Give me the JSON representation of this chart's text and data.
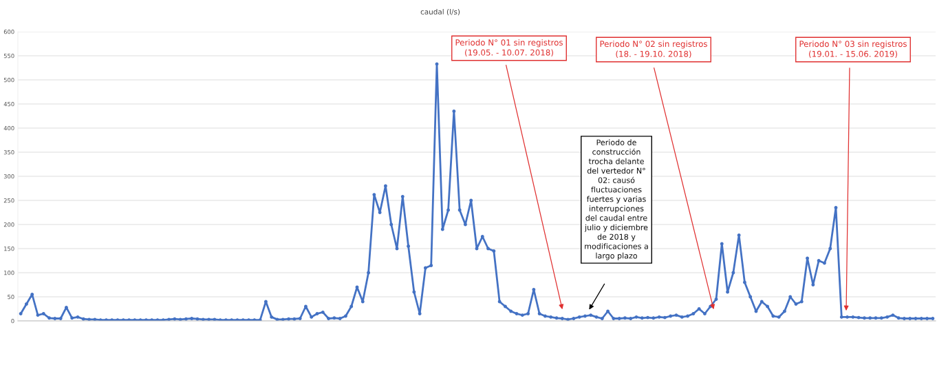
{
  "chart_data": {
    "type": "line",
    "title": "caudal (l/s)",
    "tick_labels": "y",
    "grid": "y",
    "marker": "circle",
    "line_style": "solid",
    "ylim": [
      0,
      600
    ],
    "yticks": [
      0,
      50,
      100,
      150,
      200,
      250,
      300,
      350,
      400,
      450,
      500,
      550,
      600
    ],
    "categories": [
      null,
      null,
      null,
      null,
      null,
      null,
      null,
      null,
      null,
      null,
      null,
      null,
      null,
      null,
      null,
      null,
      null,
      null,
      null,
      null,
      null,
      null,
      null,
      null,
      null,
      null,
      null,
      null,
      null,
      null,
      null,
      null,
      null,
      null,
      null,
      null,
      null,
      null,
      null,
      null,
      null,
      null,
      null,
      null,
      null,
      null,
      null,
      null,
      null,
      null,
      null,
      null,
      null,
      null,
      null,
      null,
      null,
      null,
      null,
      null,
      null,
      null,
      null,
      null,
      null,
      null,
      null,
      null,
      null,
      null,
      null,
      null,
      null,
      null,
      null,
      null,
      null,
      null,
      null,
      null,
      null,
      null,
      null,
      null,
      null,
      null,
      null,
      null,
      null,
      null,
      null,
      null,
      null,
      null,
      null,
      null,
      null,
      null,
      null,
      null,
      null,
      null,
      null,
      null,
      null,
      null,
      null,
      null,
      null,
      null,
      null,
      null,
      null,
      null,
      null,
      null,
      null,
      null,
      null,
      null,
      null,
      null,
      null,
      null,
      null,
      null,
      null,
      null,
      null,
      null,
      null,
      null,
      null,
      null,
      null,
      null,
      null,
      null,
      null,
      null,
      null,
      null,
      null,
      null,
      null,
      null,
      null,
      null,
      null,
      null,
      null,
      null,
      null,
      null,
      null,
      null,
      null,
      null,
      null,
      null,
      null
    ],
    "series": [
      {
        "color": "#4472c4",
        "values": [
          15,
          35,
          55,
          12,
          15,
          6,
          5,
          5,
          28,
          6,
          8,
          4,
          3,
          3,
          2,
          2,
          2,
          2,
          2,
          2,
          2,
          2,
          2,
          2,
          2,
          2,
          3,
          4,
          3,
          4,
          5,
          4,
          3,
          3,
          3,
          2,
          2,
          2,
          2,
          2,
          2,
          2,
          2,
          40,
          8,
          3,
          3,
          4,
          4,
          5,
          30,
          8,
          15,
          18,
          5,
          6,
          5,
          10,
          30,
          70,
          40,
          100,
          262,
          225,
          280,
          200,
          150,
          258,
          155,
          60,
          15,
          110,
          115,
          533,
          190,
          230,
          435,
          230,
          200,
          250,
          150,
          175,
          150,
          145,
          40,
          30,
          20,
          15,
          12,
          15,
          65,
          15,
          10,
          8,
          6,
          5,
          3,
          5,
          8,
          10,
          12,
          8,
          5,
          20,
          5,
          5,
          6,
          5,
          8,
          6,
          7,
          6,
          8,
          7,
          10,
          12,
          8,
          10,
          15,
          25,
          15,
          30,
          45,
          160,
          60,
          100,
          178,
          80,
          50,
          20,
          40,
          30,
          10,
          8,
          20,
          50,
          35,
          40,
          130,
          75,
          125,
          120,
          150,
          235,
          8,
          8,
          8,
          7,
          6,
          6,
          6,
          6,
          8,
          12,
          6,
          5,
          5,
          5,
          5,
          5,
          5
        ]
      }
    ],
    "annotations": [
      "Periodo N° 01 sin registros\n(19.05. - 10.07. 2018)",
      "Periodo N° 02 sin registros\n(18. - 19.10. 2018)",
      "Periodo N° 03 sin registros\n(19.01. - 15.06. 2019)",
      "Periodo de\nconstrucción\ntrocha delante\ndel vertedor N°\n02: causó\nfluctuaciones\nfuertes y varias\ninterrupciones\ndel caudal entre\njulio y diciembre\nde 2018 y\nmodificaciones a\nlargo plazo"
    ]
  }
}
